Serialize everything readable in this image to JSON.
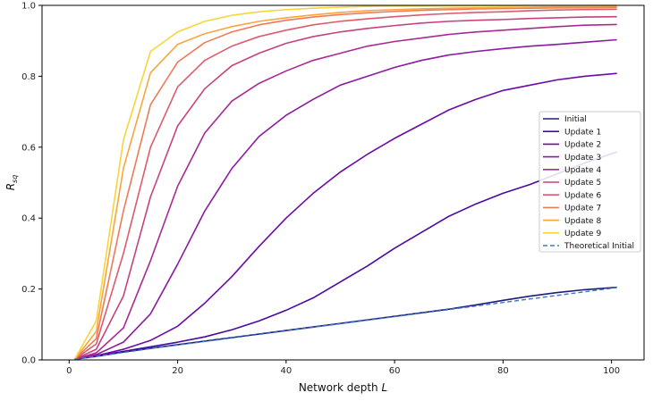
{
  "chart_data": {
    "type": "line",
    "title": "",
    "xlabel": "Network depth L",
    "ylabel": "R_sq",
    "xlim": [
      -5,
      106
    ],
    "ylim": [
      0,
      1.0
    ],
    "xticks": [
      0,
      20,
      40,
      60,
      80,
      100
    ],
    "yticks": [
      0.0,
      0.2,
      0.4,
      0.6,
      0.8,
      1.0
    ],
    "xtick_labels": [
      "0",
      "20",
      "40",
      "60",
      "80",
      "100"
    ],
    "ytick_labels": [
      "0.0",
      "0.2",
      "0.4",
      "0.6",
      "0.8",
      "1.0"
    ],
    "grid": false,
    "legend_position": "center-right",
    "x": [
      1,
      5,
      10,
      15,
      20,
      25,
      30,
      35,
      40,
      45,
      50,
      55,
      60,
      65,
      70,
      75,
      80,
      85,
      90,
      95,
      101
    ],
    "series": [
      {
        "name": "Initial",
        "color": "#1f1b7a",
        "style": "solid",
        "values": [
          0.002,
          0.01,
          0.022,
          0.033,
          0.043,
          0.053,
          0.063,
          0.073,
          0.083,
          0.093,
          0.103,
          0.113,
          0.123,
          0.133,
          0.143,
          0.155,
          0.168,
          0.18,
          0.19,
          0.198,
          0.205
        ]
      },
      {
        "name": "Update 1",
        "color": "#4a0aa0",
        "style": "solid",
        "values": [
          0.002,
          0.011,
          0.024,
          0.037,
          0.05,
          0.065,
          0.085,
          0.11,
          0.14,
          0.175,
          0.22,
          0.265,
          0.315,
          0.36,
          0.405,
          0.44,
          0.47,
          0.495,
          0.525,
          0.555,
          0.587
        ]
      },
      {
        "name": "Update 2",
        "color": "#6b0aa8",
        "style": "solid",
        "values": [
          0.002,
          0.012,
          0.03,
          0.055,
          0.095,
          0.16,
          0.235,
          0.32,
          0.4,
          0.47,
          0.53,
          0.58,
          0.625,
          0.665,
          0.705,
          0.735,
          0.76,
          0.775,
          0.79,
          0.8,
          0.808
        ]
      },
      {
        "name": "Update 3",
        "color": "#8b1aa0",
        "style": "solid",
        "values": [
          0.002,
          0.015,
          0.05,
          0.13,
          0.27,
          0.42,
          0.54,
          0.63,
          0.69,
          0.735,
          0.775,
          0.8,
          0.825,
          0.845,
          0.86,
          0.87,
          0.878,
          0.885,
          0.89,
          0.896,
          0.903
        ]
      },
      {
        "name": "Update 4",
        "color": "#a92a91",
        "style": "solid",
        "values": [
          0.002,
          0.02,
          0.09,
          0.28,
          0.49,
          0.64,
          0.73,
          0.78,
          0.815,
          0.845,
          0.865,
          0.885,
          0.898,
          0.908,
          0.918,
          0.925,
          0.93,
          0.935,
          0.94,
          0.944,
          0.946
        ]
      },
      {
        "name": "Update 5",
        "color": "#c6417f",
        "style": "solid",
        "values": [
          0.002,
          0.03,
          0.18,
          0.46,
          0.66,
          0.765,
          0.83,
          0.865,
          0.893,
          0.912,
          0.925,
          0.935,
          0.943,
          0.95,
          0.955,
          0.958,
          0.96,
          0.963,
          0.965,
          0.967,
          0.968
        ]
      },
      {
        "name": "Update 6",
        "color": "#dc5b6c",
        "style": "solid",
        "values": [
          0.002,
          0.045,
          0.3,
          0.6,
          0.77,
          0.845,
          0.885,
          0.912,
          0.93,
          0.945,
          0.955,
          0.962,
          0.968,
          0.973,
          0.977,
          0.98,
          0.982,
          0.985,
          0.987,
          0.988,
          0.989
        ]
      },
      {
        "name": "Update 7",
        "color": "#ee7a58",
        "style": "solid",
        "values": [
          0.002,
          0.06,
          0.42,
          0.72,
          0.84,
          0.895,
          0.925,
          0.945,
          0.958,
          0.967,
          0.974,
          0.979,
          0.983,
          0.986,
          0.988,
          0.99,
          0.991,
          0.992,
          0.993,
          0.993,
          0.994
        ]
      },
      {
        "name": "Update 8",
        "color": "#f9a43f",
        "style": "solid",
        "values": [
          0.002,
          0.08,
          0.54,
          0.81,
          0.89,
          0.92,
          0.94,
          0.955,
          0.965,
          0.973,
          0.98,
          0.985,
          0.988,
          0.99,
          0.992,
          0.993,
          0.994,
          0.995,
          0.996,
          0.996,
          0.997
        ]
      },
      {
        "name": "Update 9",
        "color": "#f6d53a",
        "style": "solid",
        "values": [
          0.002,
          0.11,
          0.62,
          0.87,
          0.925,
          0.955,
          0.972,
          0.982,
          0.988,
          0.992,
          0.995,
          0.997,
          0.998,
          0.998,
          0.999,
          0.999,
          0.999,
          1.0,
          1.0,
          1.0,
          1.0
        ]
      },
      {
        "name": "Theoretical Initial",
        "color": "#3b78c4",
        "style": "dashed",
        "values": [
          0.002,
          0.01,
          0.021,
          0.032,
          0.042,
          0.052,
          0.062,
          0.072,
          0.082,
          0.092,
          0.102,
          0.112,
          0.122,
          0.132,
          0.142,
          0.152,
          0.162,
          0.172,
          0.182,
          0.192,
          0.204
        ]
      }
    ]
  }
}
